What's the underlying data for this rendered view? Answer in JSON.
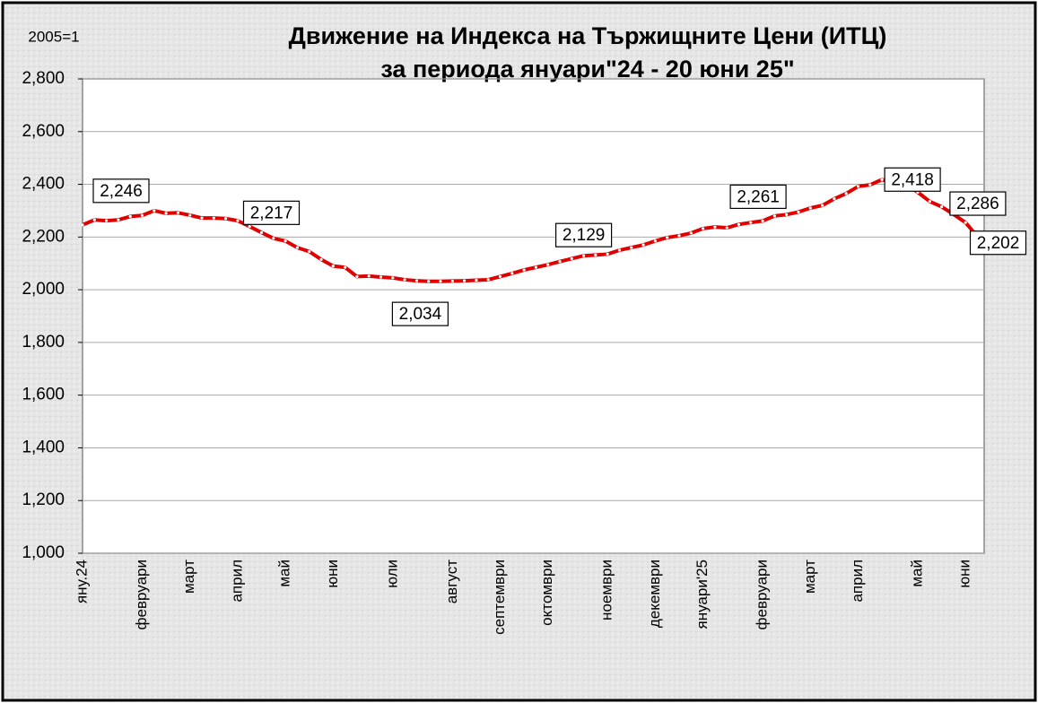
{
  "chart_data": {
    "type": "line",
    "title": "Движение на Индекса на Тържищните Цени (ИТЦ)",
    "subtitle": "за периода януари\"24 - 20 юни 25\"",
    "ylabel": "2005=1",
    "categories": [
      "яну.24",
      null,
      null,
      null,
      null,
      "февруари",
      null,
      null,
      null,
      "март",
      null,
      null,
      null,
      "април",
      null,
      null,
      null,
      "май",
      null,
      null,
      null,
      "юни",
      null,
      null,
      null,
      null,
      "юли",
      null,
      null,
      null,
      null,
      "август",
      null,
      null,
      null,
      "септември",
      null,
      null,
      null,
      "октомври",
      null,
      null,
      null,
      null,
      "ноември",
      null,
      null,
      null,
      "декември",
      null,
      null,
      null,
      "януари'25",
      null,
      null,
      null,
      null,
      "февруари",
      null,
      null,
      null,
      "март",
      null,
      null,
      null,
      "април",
      null,
      null,
      null,
      null,
      "май",
      null,
      null,
      null,
      "юни",
      null
    ],
    "values": [
      2.246,
      2.265,
      2.262,
      2.265,
      2.278,
      2.282,
      2.3,
      2.29,
      2.292,
      2.283,
      2.272,
      2.272,
      2.27,
      2.262,
      2.24,
      2.217,
      2.195,
      2.185,
      2.16,
      2.145,
      2.115,
      2.09,
      2.085,
      2.05,
      2.052,
      2.048,
      2.045,
      2.038,
      2.034,
      2.032,
      2.032,
      2.033,
      2.034,
      2.036,
      2.038,
      2.05,
      2.062,
      2.075,
      2.085,
      2.095,
      2.107,
      2.118,
      2.129,
      2.132,
      2.135,
      2.15,
      2.16,
      2.17,
      2.185,
      2.198,
      2.205,
      2.215,
      2.232,
      2.238,
      2.235,
      2.248,
      2.255,
      2.261,
      2.28,
      2.285,
      2.295,
      2.31,
      2.32,
      2.345,
      2.365,
      2.392,
      2.398,
      2.418,
      2.405,
      2.4,
      2.37,
      2.335,
      2.315,
      2.286,
      2.255,
      2.202
    ],
    "value_labels": [
      "2,246",
      null,
      null,
      null,
      null,
      null,
      null,
      null,
      null,
      null,
      null,
      null,
      null,
      null,
      null,
      "2,217",
      null,
      null,
      null,
      null,
      null,
      null,
      null,
      null,
      null,
      null,
      null,
      null,
      "2,034",
      null,
      null,
      null,
      null,
      null,
      null,
      null,
      null,
      null,
      null,
      null,
      null,
      null,
      "2,129",
      null,
      null,
      null,
      null,
      null,
      null,
      null,
      null,
      null,
      null,
      null,
      null,
      null,
      null,
      "2,261",
      null,
      null,
      null,
      null,
      null,
      null,
      null,
      null,
      null,
      "2,418",
      null,
      null,
      null,
      null,
      null,
      "2,286",
      null,
      "2,202"
    ],
    "color": "#e00000",
    "ylim": [
      1.0,
      2.8
    ],
    "yticks": [
      {
        "value": 1.0,
        "label": "1,000"
      },
      {
        "value": 1.2,
        "label": "1,200"
      },
      {
        "value": 1.4,
        "label": "1,400"
      },
      {
        "value": 1.6,
        "label": "1,600"
      },
      {
        "value": 1.8,
        "label": "1,800"
      },
      {
        "value": 2.0,
        "label": "2,000"
      },
      {
        "value": 2.2,
        "label": "2,200"
      },
      {
        "value": 2.4,
        "label": "2,400"
      },
      {
        "value": 2.6,
        "label": "2,600"
      },
      {
        "value": 2.8,
        "label": "2,800"
      }
    ],
    "grid": true
  }
}
